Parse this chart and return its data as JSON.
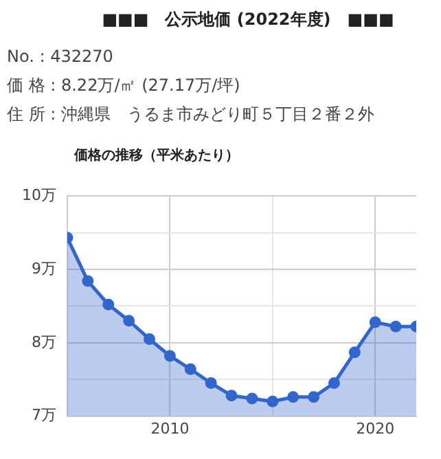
{
  "chart_data": {
    "type": "area",
    "title": "■■■　公示地価 (2022年度)　■■■",
    "annotations": [
      "No. : 432270",
      "価 格 : 8.22万/㎡ (27.17万/坪)",
      "住 所 : 沖縄県　うるま市みどり町５丁目２番２外"
    ],
    "subtitle": "価格の推移（平米あたり）",
    "x": [
      2005,
      2006,
      2007,
      2008,
      2009,
      2010,
      2011,
      2012,
      2013,
      2014,
      2015,
      2016,
      2017,
      2018,
      2019,
      2020,
      2021,
      2022
    ],
    "series": [
      {
        "color": "#3366cc",
        "values": [
          9.43,
          8.84,
          8.52,
          8.3,
          8.05,
          7.82,
          7.64,
          7.45,
          7.28,
          7.24,
          7.2,
          7.26,
          7.26,
          7.45,
          7.87,
          8.28,
          8.22,
          8.22
        ]
      }
    ],
    "xlim": [
      2005,
      2022
    ],
    "xticks": [
      2010,
      {
        "value": 2015,
        "label": null
      },
      2020
    ],
    "ylim": [
      7,
      10
    ],
    "yticks": [
      {
        "value": 7,
        "label": "7万"
      },
      {
        "value": 7.5,
        "label": null
      },
      {
        "value": 8,
        "label": "8万"
      },
      {
        "value": 8.5,
        "label": null
      },
      {
        "value": 9,
        "label": "9万"
      },
      {
        "value": 9.5,
        "label": null
      },
      {
        "value": 10,
        "label": "10万"
      }
    ],
    "grid": true,
    "legend": false,
    "marker": "circle",
    "line_style": "solid"
  }
}
